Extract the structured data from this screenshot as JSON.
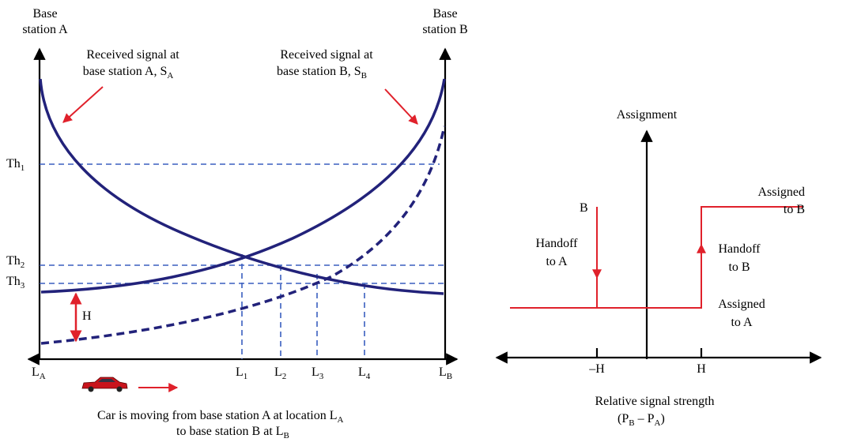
{
  "left": {
    "base_station_a": [
      "Base",
      "station A"
    ],
    "base_station_b": [
      "Base",
      "station B"
    ],
    "signal_a": {
      "lines": [
        "Received signal at",
        "base station A, S"
      ],
      "sub": "A"
    },
    "signal_b": {
      "lines": [
        "Received signal at",
        "base station B, S"
      ],
      "sub": "B"
    },
    "thresholds": [
      {
        "base": "Th",
        "sub": "1"
      },
      {
        "base": "Th",
        "sub": "2"
      },
      {
        "base": "Th",
        "sub": "3"
      }
    ],
    "hysteresis": "H",
    "locations": [
      {
        "base": "L",
        "sub": "A"
      },
      {
        "base": "L",
        "sub": "1"
      },
      {
        "base": "L",
        "sub": "2"
      },
      {
        "base": "L",
        "sub": "3"
      },
      {
        "base": "L",
        "sub": "4"
      },
      {
        "base": "L",
        "sub": "B"
      }
    ],
    "caption": {
      "line1": "Car is moving from base station A at location  L",
      "sub1": "A",
      "line2": "to base station B at L",
      "sub2": "B"
    }
  },
  "right": {
    "y_label": "Assignment",
    "level_b": "B",
    "assigned_b": [
      "Assigned",
      "to B"
    ],
    "handoff_a": [
      "Handoff",
      "to A"
    ],
    "handoff_b": [
      "Handoff",
      "to B"
    ],
    "assigned_a": [
      "Assigned",
      "to A"
    ],
    "ticks": [
      "–H",
      "H"
    ],
    "x_label": {
      "line1": "Relative signal strength",
      "line2": "(P",
      "sub1": "B",
      "mid": " – P",
      "sub2": "A",
      "end": ")"
    }
  }
}
